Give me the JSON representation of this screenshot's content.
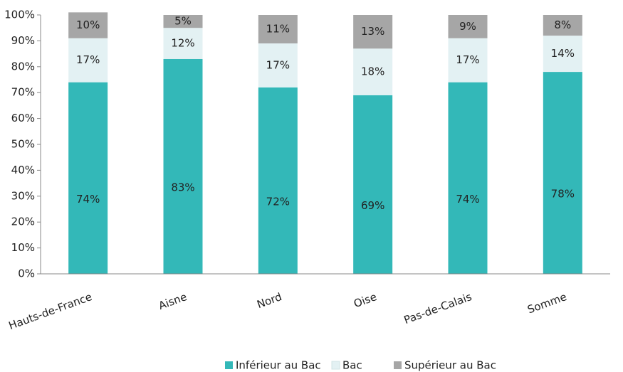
{
  "chart_data": {
    "type": "stacked_bar",
    "categories": [
      "Hauts-de-France",
      "Aisne",
      "Nord",
      "Oise",
      "Pas-de-Calais",
      "Somme"
    ],
    "series": [
      {
        "name": "Inférieur au Bac",
        "color": "#33b8b8",
        "values": [
          74,
          83,
          72,
          69,
          74,
          78
        ],
        "value_labels": [
          "74%",
          "83%",
          "72%",
          "69%",
          "74%",
          "78%"
        ]
      },
      {
        "name": "Bac",
        "color": "#e3f1f3",
        "values": [
          17,
          12,
          17,
          18,
          17,
          14
        ],
        "value_labels": [
          "17%",
          "12%",
          "17%",
          "18%",
          "17%",
          "14%"
        ]
      },
      {
        "name": "Supérieur au Bac",
        "color": "#a6a6a6",
        "values": [
          10,
          5,
          11,
          13,
          9,
          8
        ],
        "value_labels": [
          "10%",
          "5%",
          "11%",
          "13%",
          "9%",
          "8%"
        ]
      }
    ],
    "ylim": [
      0,
      100
    ],
    "yticks": [
      {
        "value": 0,
        "label": "0%"
      },
      {
        "value": 10,
        "label": "10%"
      },
      {
        "value": 20,
        "label": "20%"
      },
      {
        "value": 30,
        "label": "30%"
      },
      {
        "value": 40,
        "label": "40%"
      },
      {
        "value": 50,
        "label": "50%"
      },
      {
        "value": 60,
        "label": "60%"
      },
      {
        "value": 70,
        "label": "70%"
      },
      {
        "value": 80,
        "label": "80%"
      },
      {
        "value": 90,
        "label": "90%"
      },
      {
        "value": 100,
        "label": "100%"
      }
    ],
    "legend": "bottom"
  }
}
